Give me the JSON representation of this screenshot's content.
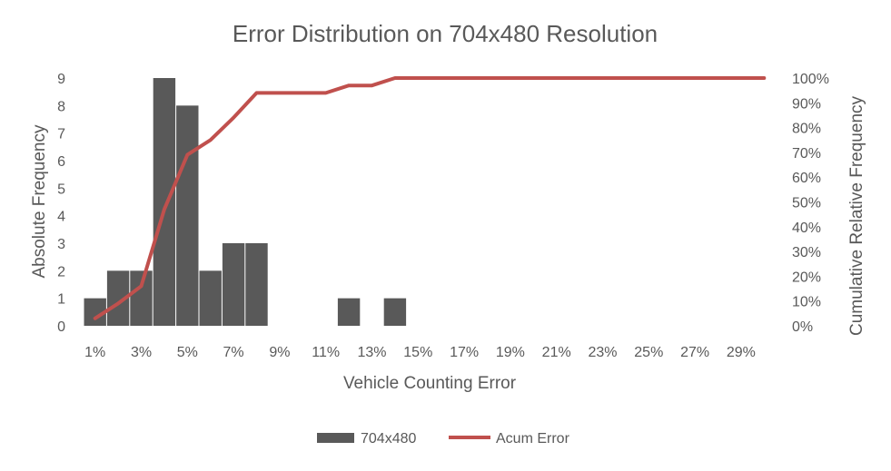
{
  "chart_data": {
    "type": "bar",
    "title": "Error Distribution on 704x480 Resolution",
    "xlabel": "Vehicle Counting Error",
    "ylabel": "Absolute Frequency",
    "y2label": "Cumulative Relative Frequency",
    "categories": [
      "1%",
      "2%",
      "3%",
      "4%",
      "5%",
      "6%",
      "7%",
      "8%",
      "9%",
      "10%",
      "11%",
      "12%",
      "13%",
      "14%",
      "15%",
      "16%",
      "17%",
      "18%",
      "19%",
      "20%",
      "21%",
      "22%",
      "23%",
      "24%",
      "25%",
      "26%",
      "27%",
      "28%",
      "29%",
      "30%"
    ],
    "x_tick_labels": [
      "1%",
      "3%",
      "5%",
      "7%",
      "9%",
      "11%",
      "13%",
      "15%",
      "17%",
      "19%",
      "21%",
      "23%",
      "25%",
      "27%",
      "29%"
    ],
    "ylim": [
      0,
      9
    ],
    "y_ticks": [
      "0",
      "1",
      "2",
      "3",
      "4",
      "5",
      "6",
      "7",
      "8",
      "9"
    ],
    "y2lim": [
      0,
      100
    ],
    "y2_ticks": [
      "0%",
      "10%",
      "20%",
      "30%",
      "40%",
      "50%",
      "60%",
      "70%",
      "80%",
      "90%",
      "100%"
    ],
    "series": [
      {
        "name": "704x480",
        "type": "bar",
        "color": "#595959",
        "axis": "left",
        "values": [
          1,
          2,
          2,
          9,
          8,
          2,
          3,
          3,
          0,
          0,
          0,
          1,
          0,
          1,
          0,
          0,
          0,
          0,
          0,
          0,
          0,
          0,
          0,
          0,
          0,
          0,
          0,
          0,
          0,
          0
        ]
      },
      {
        "name": "Acum Error",
        "type": "line",
        "color": "#c0504d",
        "axis": "right",
        "values": [
          3,
          9,
          16,
          47,
          69,
          75,
          84,
          94,
          94,
          94,
          94,
          97,
          97,
          100,
          100,
          100,
          100,
          100,
          100,
          100,
          100,
          100,
          100,
          100,
          100,
          100,
          100,
          100,
          100,
          100
        ]
      }
    ],
    "legend_position": "bottom",
    "grid": false
  }
}
